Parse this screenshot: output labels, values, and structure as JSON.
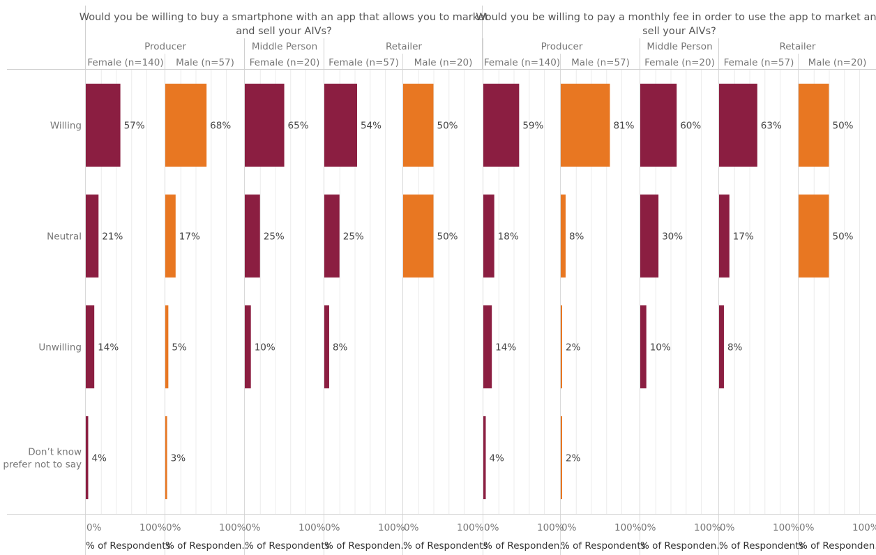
{
  "chart_data": {
    "type": "bar",
    "orientation": "horizontal",
    "x_axis_range": [
      0,
      100
    ],
    "x_unit": "%",
    "grid": true,
    "legend": "none",
    "colors": {
      "Female": "#8b1e41",
      "Male": "#e87722"
    },
    "categories": [
      "Willing",
      "Neutral",
      "Unwilling",
      "Don't know prefer not to say"
    ],
    "category_labels": [
      [
        "Willing"
      ],
      [
        "Neutral"
      ],
      [
        "Unwilling"
      ],
      [
        "Don’t know",
        "prefer not to say"
      ]
    ],
    "x_tick_labels": [
      "0%",
      "100%"
    ],
    "x_axis_title_full": "% of Respondents",
    "x_axis_title_short": "% of Responden..",
    "questions": [
      {
        "title_lines": [
          "Would you be willing to buy a smartphone with an app that allows you to market",
          "and sell your AIVs?"
        ],
        "groups": [
          {
            "name": "Producer",
            "panels": [
              {
                "label": "Female (n=140)",
                "gender": "Female",
                "values": [
                  57,
                  21,
                  14,
                  4
                ],
                "axis_title": "full"
              },
              {
                "label": "Male (n=57)",
                "gender": "Male",
                "values": [
                  68,
                  17,
                  5,
                  3
                ],
                "axis_title": "short"
              }
            ]
          },
          {
            "name": "Middle Person",
            "panels": [
              {
                "label": "Female (n=20)",
                "gender": "Female",
                "values": [
                  65,
                  25,
                  10,
                  null
                ],
                "axis_title": "full"
              }
            ]
          },
          {
            "name": "Retailer",
            "panels": [
              {
                "label": "Female (n=57)",
                "gender": "Female",
                "values": [
                  54,
                  25,
                  8,
                  null
                ],
                "axis_title": "short"
              },
              {
                "label": "Male (n=20)",
                "gender": "Male",
                "values": [
                  50,
                  50,
                  null,
                  null
                ],
                "axis_title": "full"
              }
            ]
          }
        ]
      },
      {
        "title_lines": [
          "Would you be willing to pay a monthly fee in order to use the app to market and",
          "sell your AIVs?"
        ],
        "groups": [
          {
            "name": "Producer",
            "panels": [
              {
                "label": "Female (n=140)",
                "gender": "Female",
                "values": [
                  59,
                  18,
                  14,
                  4
                ],
                "axis_title": "short"
              },
              {
                "label": "Male (n=57)",
                "gender": "Male",
                "values": [
                  81,
                  8,
                  2,
                  2
                ],
                "axis_title": "full"
              }
            ]
          },
          {
            "name": "Middle Person",
            "panels": [
              {
                "label": "Female (n=20)",
                "gender": "Female",
                "values": [
                  60,
                  30,
                  10,
                  null
                ],
                "axis_title": "short"
              }
            ]
          },
          {
            "name": "Retailer",
            "panels": [
              {
                "label": "Female (n=57)",
                "gender": "Female",
                "values": [
                  63,
                  17,
                  8,
                  null
                ],
                "axis_title": "full"
              },
              {
                "label": "Male (n=20)",
                "gender": "Male",
                "values": [
                  50,
                  50,
                  null,
                  null
                ],
                "axis_title": "short"
              }
            ]
          }
        ]
      }
    ]
  }
}
